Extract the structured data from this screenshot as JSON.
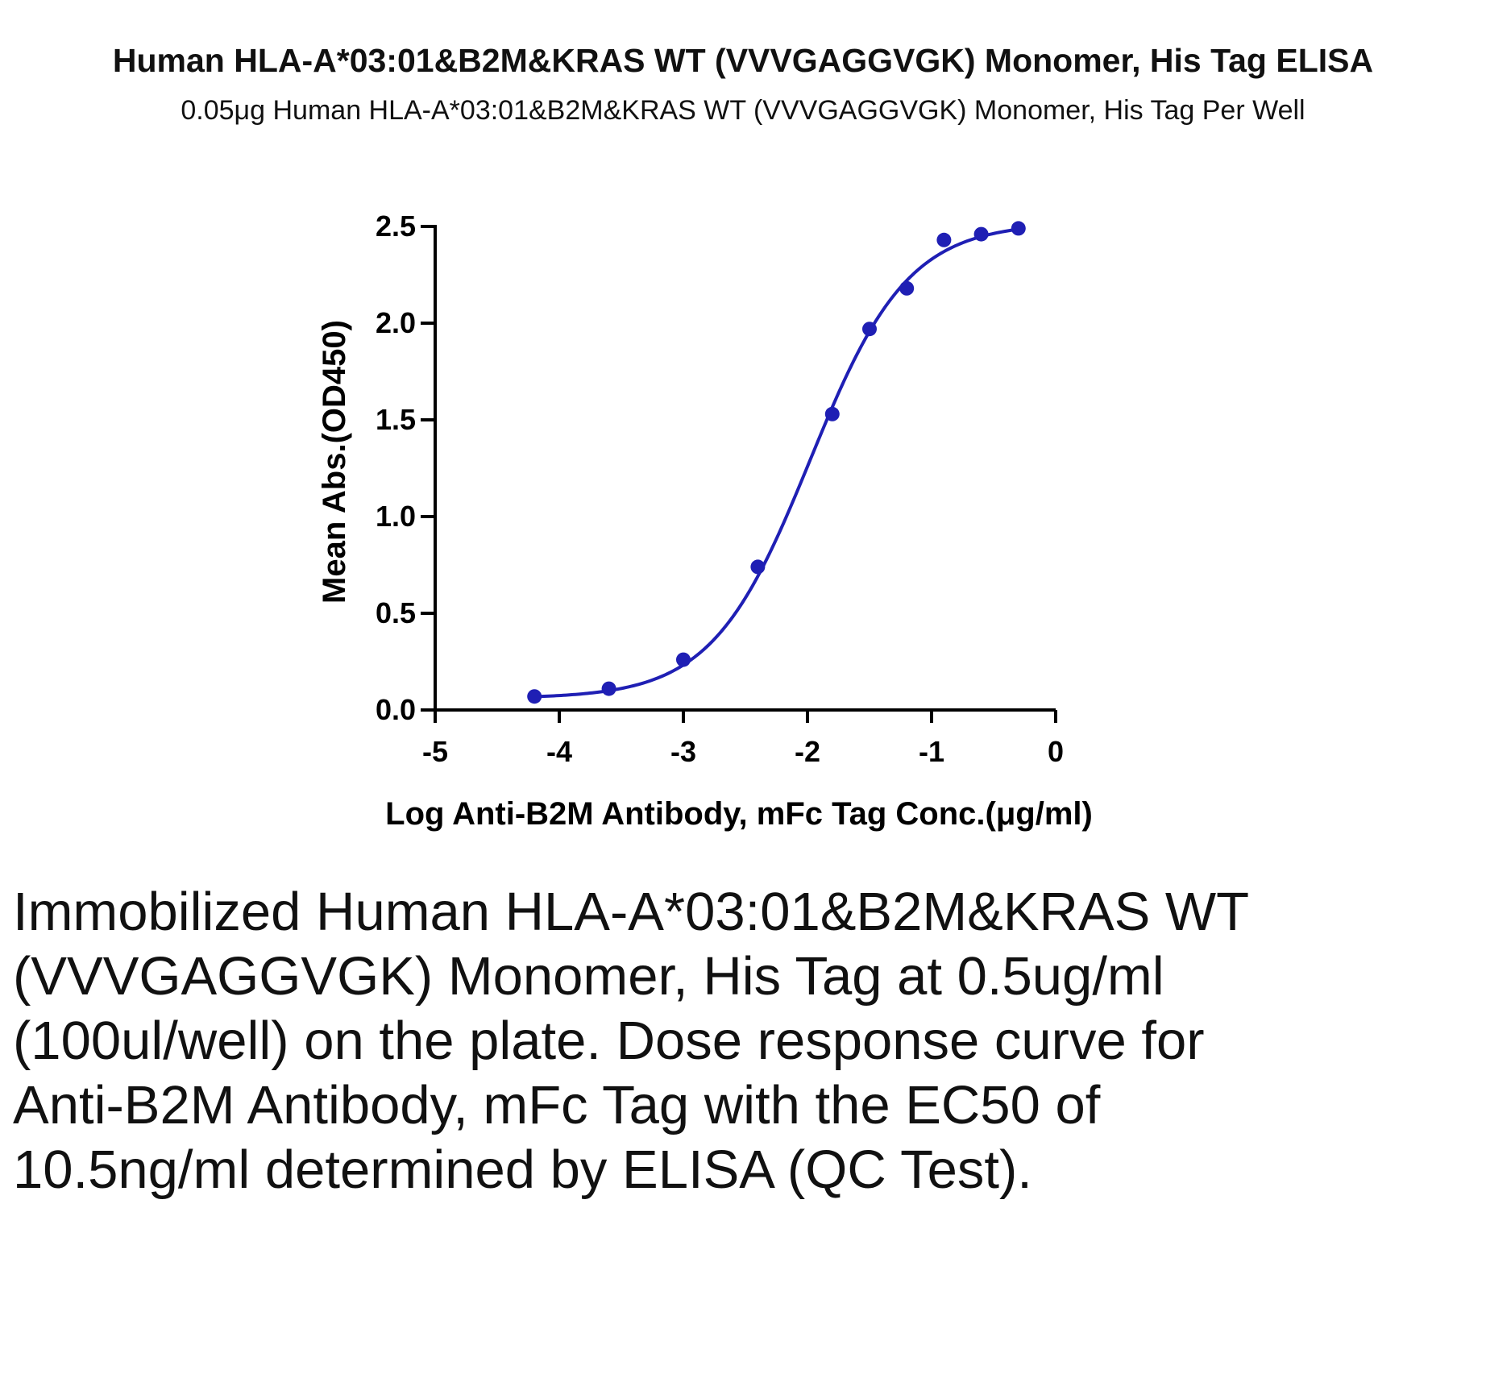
{
  "title": "Human HLA-A*03:01&B2M&KRAS WT (VVVGAGGVGK) Monomer, His Tag ELISA",
  "subtitle": "0.05μg Human HLA-A*03:01&B2M&KRAS WT (VVVGAGGVGK) Monomer, His Tag Per Well",
  "caption": "Immobilized Human HLA-A*03:01&B2M&KRAS WT (VVVGAGGVGK) Monomer, His Tag at 0.5ug/ml (100ul/well) on the plate. Dose response curve for Anti-B2M Antibody, mFc Tag with the EC50 of 10.5ng/ml determined by ELISA (QC Test).",
  "chart_data": {
    "type": "scatter",
    "title": "Human HLA-A*03:01&B2M&KRAS WT (VVVGAGGVGK) Monomer, His Tag ELISA",
    "subtitle": "0.05μg Human HLA-A*03:01&B2M&KRAS WT (VVVGAGGVGK) Monomer, His Tag Per Well",
    "xlabel": "Log Anti-B2M Antibody, mFc Tag Conc.(μg/ml)",
    "ylabel": "Mean Abs.(OD450)",
    "xlim": [
      -5,
      0
    ],
    "ylim": [
      0,
      2.5
    ],
    "xticks": [
      -5,
      -4,
      -3,
      -2,
      -1,
      0
    ],
    "xtick_labels": [
      "-5",
      "-4",
      "-3",
      "-2",
      "-1",
      "0"
    ],
    "yticks": [
      0,
      0.5,
      1.0,
      1.5,
      2.0,
      2.5
    ],
    "ytick_labels": [
      "0.0",
      "0.5",
      "1.0",
      "1.5",
      "2.0",
      "2.5"
    ],
    "grid": false,
    "color": "#1f1fb4",
    "points": [
      {
        "x": -4.2,
        "y": 0.07
      },
      {
        "x": -3.6,
        "y": 0.11
      },
      {
        "x": -3.0,
        "y": 0.26
      },
      {
        "x": -2.4,
        "y": 0.74
      },
      {
        "x": -1.8,
        "y": 1.53
      },
      {
        "x": -1.5,
        "y": 1.97
      },
      {
        "x": -1.2,
        "y": 2.18
      },
      {
        "x": -0.9,
        "y": 2.43
      },
      {
        "x": -0.6,
        "y": 2.46
      },
      {
        "x": -0.3,
        "y": 2.49
      }
    ],
    "fit": {
      "model": "4PL",
      "bottom": 0.06,
      "top": 2.52,
      "logEC50": -1.98,
      "hill": 1.1
    }
  }
}
